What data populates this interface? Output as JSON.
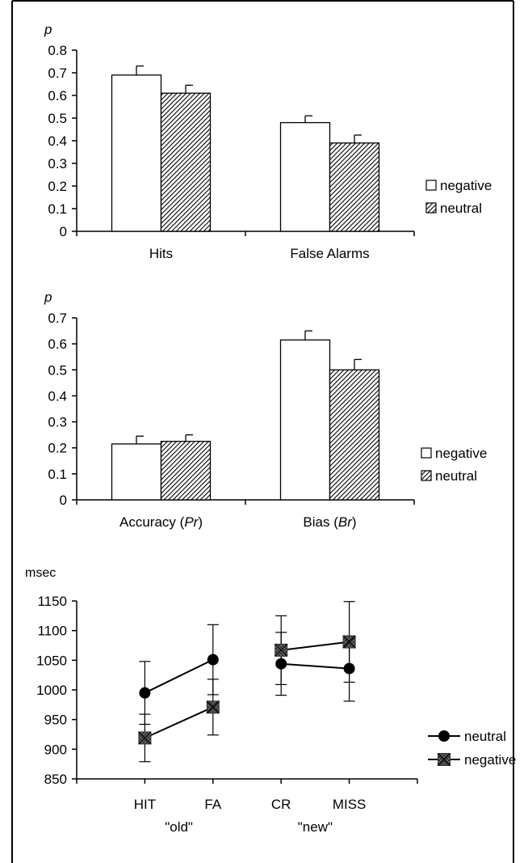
{
  "chart_data": [
    {
      "type": "bar",
      "ylabel": "p",
      "ylim": [
        0,
        0.8
      ],
      "yticks": [
        "0",
        "0.1",
        "0.2",
        "0.3",
        "0.4",
        "0.5",
        "0.6",
        "0.7",
        "0.8"
      ],
      "categories": [
        "Hits",
        "False Alarms"
      ],
      "series": [
        {
          "name": "negative",
          "values": [
            0.69,
            0.48
          ],
          "errors": [
            0.04,
            0.03
          ],
          "fill": "#ffffff"
        },
        {
          "name": "neutral",
          "values": [
            0.61,
            0.39
          ],
          "errors": [
            0.035,
            0.035
          ],
          "fill": "hatch"
        }
      ],
      "legend": "right"
    },
    {
      "type": "bar",
      "ylabel": "p",
      "ylim": [
        0,
        0.7
      ],
      "yticks": [
        "0",
        "0.1",
        "0.2",
        "0.3",
        "0.4",
        "0.5",
        "0.6",
        "0.7"
      ],
      "categories": [
        {
          "text": "Accuracy (",
          "italic": "Pr",
          "end": ")"
        },
        {
          "text": "Bias (",
          "italic": "Br",
          "end": ")"
        }
      ],
      "series": [
        {
          "name": "negative",
          "values": [
            0.215,
            0.615
          ],
          "errors": [
            0.03,
            0.035
          ],
          "fill": "#ffffff"
        },
        {
          "name": "neutral",
          "values": [
            0.225,
            0.5
          ],
          "errors": [
            0.025,
            0.04
          ],
          "fill": "hatch"
        }
      ],
      "legend": "right"
    },
    {
      "type": "line",
      "ylabel": "msec",
      "ylim": [
        850,
        1150
      ],
      "yticks": [
        "850",
        "900",
        "950",
        "1000",
        "1050",
        "1100",
        "1150"
      ],
      "categories": [
        "HIT",
        "FA",
        "CR",
        "MISS"
      ],
      "groups": [
        "\"old\"",
        "\"new\""
      ],
      "series": [
        {
          "name": "neutral",
          "marker": "circle",
          "values": [
            995,
            1051,
            1044,
            1036
          ],
          "errors": [
            53,
            59,
            53,
            55
          ],
          "segments": [
            [
              0,
              1
            ],
            [
              2,
              3
            ]
          ]
        },
        {
          "name": "negative",
          "marker": "square-x",
          "values": [
            919,
            971,
            1067,
            1081
          ],
          "errors": [
            40,
            47,
            58,
            68
          ],
          "segments": [
            [
              0,
              1
            ],
            [
              2,
              3
            ]
          ]
        }
      ],
      "legend": "right"
    }
  ]
}
